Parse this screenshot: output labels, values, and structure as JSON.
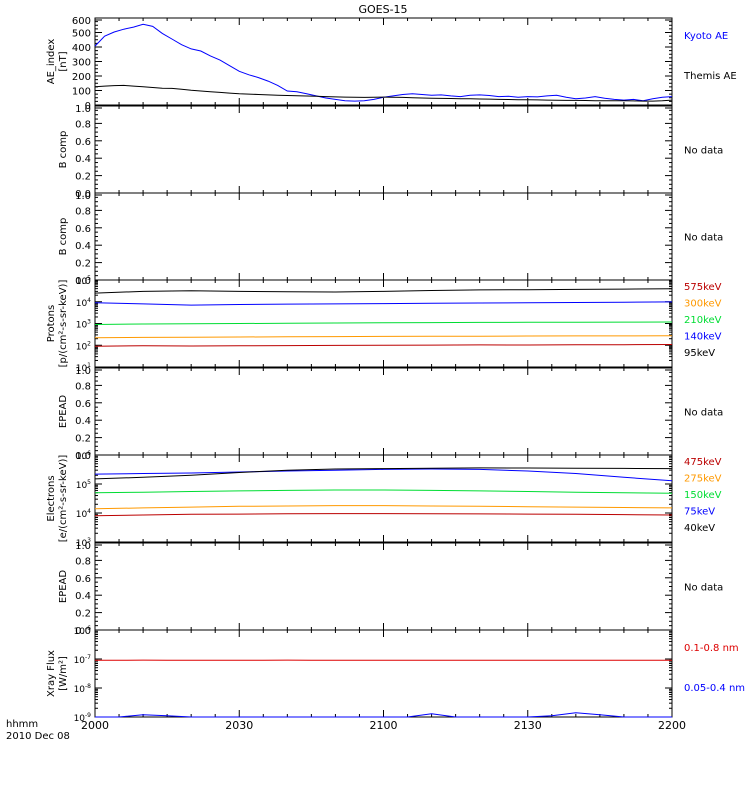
{
  "title": "GOES-15",
  "x_axis": {
    "tick_labels": [
      "2000",
      "2030",
      "2100",
      "2130",
      "2200"
    ],
    "corner_label_1": "hhmm",
    "corner_label_2": "2010 Dec 08",
    "range": [
      "2000",
      "2200"
    ]
  },
  "colors": {
    "black": "#000000",
    "blue": "#0000ff",
    "green": "#00dd33",
    "orange": "#ff9900",
    "darkred": "#bb0000",
    "red": "#dd0000"
  },
  "chart_data": [
    {
      "type": "line",
      "panel": "ae_index",
      "ylabel": [
        "AE_index",
        "[nT]"
      ],
      "ylim": [
        0,
        620
      ],
      "yticks": [
        "600",
        "500",
        "400",
        "300",
        "200",
        "100",
        "0"
      ],
      "x": [
        0,
        2,
        4,
        6,
        8,
        10,
        12,
        14,
        16,
        18,
        20,
        22,
        24,
        26,
        28,
        30,
        32,
        34,
        36,
        38,
        40,
        42,
        44,
        46,
        48,
        50,
        52,
        54,
        56,
        58,
        60,
        62,
        64,
        66,
        68,
        70,
        72,
        74,
        76,
        78,
        80,
        82,
        84,
        86,
        88,
        90,
        92,
        94,
        96,
        98,
        100,
        102,
        104,
        106,
        108,
        110,
        112,
        114,
        116,
        118,
        120
      ],
      "series": [
        {
          "name": "Kyoto AE",
          "color": "blue",
          "values": [
            420,
            490,
            520,
            540,
            555,
            575,
            560,
            510,
            470,
            430,
            400,
            385,
            350,
            320,
            280,
            240,
            215,
            195,
            170,
            140,
            100,
            95,
            80,
            65,
            50,
            40,
            30,
            28,
            30,
            40,
            55,
            65,
            75,
            80,
            75,
            70,
            72,
            65,
            60,
            70,
            72,
            68,
            60,
            62,
            55,
            60,
            58,
            65,
            70,
            55,
            45,
            50,
            60,
            48,
            40,
            35,
            40,
            30,
            45,
            55,
            60
          ]
        },
        {
          "name": "Themis AE",
          "color": "black",
          "values": [
            130,
            135,
            138,
            140,
            135,
            130,
            125,
            120,
            118,
            112,
            105,
            100,
            95,
            90,
            85,
            80,
            78,
            75,
            72,
            70,
            68,
            66,
            64,
            62,
            60,
            58,
            56,
            55,
            54,
            55,
            56,
            55,
            54,
            52,
            50,
            48,
            47,
            46,
            45,
            44,
            43,
            42,
            40,
            39,
            38,
            37,
            36,
            35,
            34,
            33,
            33,
            32,
            31,
            30,
            30,
            30,
            29,
            28,
            28,
            30,
            35
          ]
        }
      ]
    },
    {
      "type": "line",
      "panel": "b_comp_1",
      "ylabel": [
        "B comp"
      ],
      "ylim": [
        0,
        1
      ],
      "yticks": [
        "1.0",
        "0.8",
        "0.6",
        "0.4",
        "0.2",
        "0.0"
      ],
      "note": "No data",
      "series": []
    },
    {
      "type": "line",
      "panel": "b_comp_2",
      "ylabel": [
        "B comp"
      ],
      "ylim": [
        0,
        1
      ],
      "yticks": [
        "1.0",
        "0.8",
        "0.6",
        "0.4",
        "0.2",
        "0.0"
      ],
      "note": "No data",
      "series": []
    },
    {
      "type": "line",
      "panel": "protons",
      "log_scale": true,
      "ylabel": [
        "Protons",
        "[p/(cm²-s-sr-keV)]"
      ],
      "ylim_log10": [
        1,
        5
      ],
      "ytick_exponents": [
        1,
        2,
        3,
        4,
        5
      ],
      "x": [
        0,
        10,
        20,
        30,
        40,
        50,
        60,
        70,
        80,
        90,
        100,
        110,
        120
      ],
      "series": [
        {
          "name": "575keV",
          "color": "darkred",
          "values": [
            90,
            95,
            92,
            94,
            96,
            98,
            100,
            102,
            104,
            103,
            105,
            106,
            108
          ]
        },
        {
          "name": "300keV",
          "color": "orange",
          "values": [
            220,
            230,
            235,
            240,
            245,
            250,
            255,
            260,
            262,
            265,
            268,
            270,
            272
          ]
        },
        {
          "name": "210keV",
          "color": "green",
          "values": [
            900,
            950,
            980,
            1000,
            1020,
            1050,
            1080,
            1100,
            1120,
            1140,
            1150,
            1160,
            1170
          ]
        },
        {
          "name": "140keV",
          "color": "blue",
          "values": [
            9000,
            8000,
            7000,
            7500,
            7800,
            8000,
            8200,
            8500,
            8800,
            9000,
            9200,
            9500,
            9800
          ]
        },
        {
          "name": "95keV",
          "color": "black",
          "values": [
            25000,
            30000,
            32000,
            30000,
            29000,
            28000,
            30000,
            33000,
            35000,
            36000,
            37000,
            38000,
            40000
          ]
        }
      ]
    },
    {
      "type": "line",
      "panel": "epead_1",
      "ylabel": [
        "EPEAD"
      ],
      "ylim": [
        0,
        1
      ],
      "yticks": [
        "1.0",
        "0.8",
        "0.6",
        "0.4",
        "0.2",
        "0.0"
      ],
      "note": "No data",
      "series": []
    },
    {
      "type": "line",
      "panel": "electrons",
      "log_scale": true,
      "ylabel": [
        "Electrons",
        "[e/(cm²-s-sr-keV)]"
      ],
      "ylim_log10": [
        3,
        6
      ],
      "ytick_exponents": [
        3,
        4,
        5,
        6
      ],
      "x": [
        0,
        10,
        20,
        30,
        40,
        50,
        60,
        70,
        80,
        90,
        100,
        110,
        120
      ],
      "series": [
        {
          "name": "475keV",
          "color": "darkred",
          "values": [
            8000,
            8500,
            9000,
            9200,
            9400,
            9500,
            9500,
            9400,
            9300,
            9200,
            9000,
            8800,
            8500
          ]
        },
        {
          "name": "275keV",
          "color": "orange",
          "values": [
            14000,
            15000,
            16000,
            17000,
            17500,
            18000,
            18000,
            17500,
            17000,
            16500,
            16000,
            15500,
            15000
          ]
        },
        {
          "name": "150keV",
          "color": "green",
          "values": [
            50000,
            52000,
            55000,
            58000,
            60000,
            62000,
            62000,
            60000,
            58000,
            55000,
            52000,
            50000,
            48000
          ]
        },
        {
          "name": "75keV",
          "color": "blue",
          "values": [
            220000,
            230000,
            240000,
            260000,
            280000,
            300000,
            320000,
            330000,
            320000,
            280000,
            230000,
            170000,
            130000
          ]
        },
        {
          "name": "40keV",
          "color": "black",
          "values": [
            150000,
            170000,
            200000,
            250000,
            300000,
            330000,
            340000,
            350000,
            360000,
            355000,
            350000,
            345000,
            340000
          ]
        }
      ]
    },
    {
      "type": "line",
      "panel": "epead_2",
      "ylabel": [
        "EPEAD"
      ],
      "ylim": [
        0,
        1
      ],
      "yticks": [
        "1.0",
        "0.8",
        "0.6",
        "0.4",
        "0.2",
        "0.0"
      ],
      "note": "No data",
      "series": []
    },
    {
      "type": "line",
      "panel": "xray",
      "log_scale": true,
      "ylabel": [
        "Xray Flux",
        "[W/m²]"
      ],
      "ylim_log10": [
        -9,
        -6
      ],
      "ytick_exponents": [
        -9,
        -8,
        -7,
        -6
      ],
      "x": [
        0,
        5,
        10,
        15,
        20,
        25,
        30,
        35,
        40,
        45,
        50,
        55,
        60,
        65,
        70,
        75,
        80,
        85,
        90,
        95,
        100,
        105,
        110,
        115,
        120
      ],
      "series": [
        {
          "name": "0.1-0.8 nm",
          "color": "red",
          "values": [
            9e-08,
            9e-08,
            9.2e-08,
            9.1e-08,
            9e-08,
            9e-08,
            9.1e-08,
            9e-08,
            9.2e-08,
            9e-08,
            9.1e-08,
            9e-08,
            9e-08,
            9.1e-08,
            9e-08,
            9e-08,
            9e-08,
            9e-08,
            9.1e-08,
            9e-08,
            9e-08,
            9e-08,
            9e-08,
            9e-08,
            9e-08
          ]
        },
        {
          "name": "0.05-0.4 nm",
          "color": "blue",
          "values": [
            1e-09,
            1e-09,
            1.2e-09,
            1.1e-09,
            1e-09,
            1e-09,
            1e-09,
            1e-09,
            1e-09,
            1e-09,
            1e-09,
            1e-09,
            1e-09,
            1e-09,
            1.3e-09,
            1e-09,
            1e-09,
            1e-09,
            1e-09,
            1.1e-09,
            1.4e-09,
            1.2e-09,
            1e-09,
            1e-09,
            1e-09
          ]
        }
      ]
    }
  ]
}
